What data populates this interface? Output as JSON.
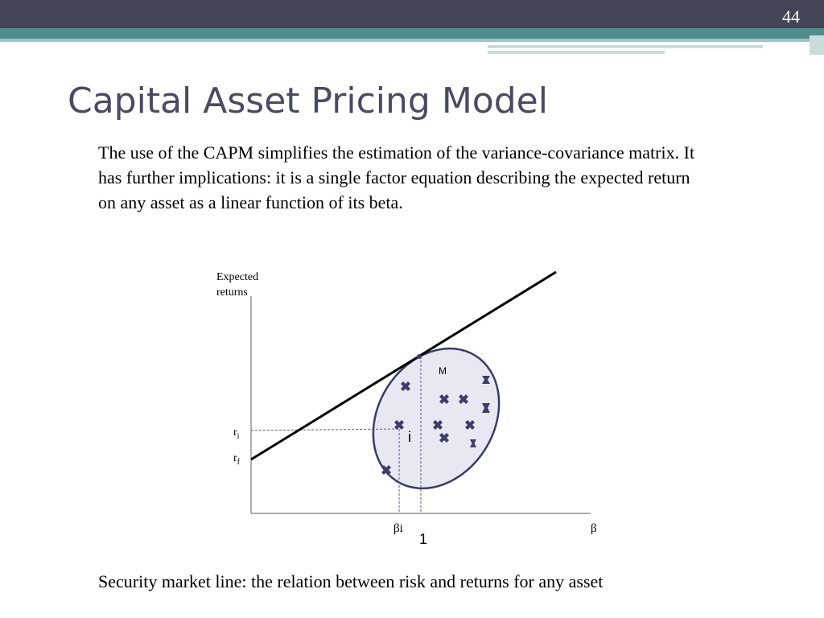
{
  "slide": {
    "number": "44",
    "title": "Capital Asset Pricing Model",
    "body": "The use of the CAPM simplifies the estimation of the variance-covariance matrix. It has further implications: it is a single factor equation describing the expected return on any asset as a linear function of its beta.",
    "caption": "Security market line: the relation between risk and returns for any asset"
  },
  "diagram": {
    "y_axis_label_line1": "Expected",
    "y_axis_label_line2": "returns",
    "x_axis_label": "β",
    "ri_label": "r",
    "ri_sub": "i",
    "rf_label": "r",
    "rf_sub": "f",
    "beta_i_label": "βi",
    "beta_one_label": "1",
    "market_label": "M",
    "asset_label": "i",
    "colors": {
      "ellipse_fill": "#e8e8f2",
      "ellipse_stroke": "#3b3b6a",
      "marker": "#3d3d6a",
      "dashed": "#5a5a8a",
      "line": "#000000"
    }
  }
}
